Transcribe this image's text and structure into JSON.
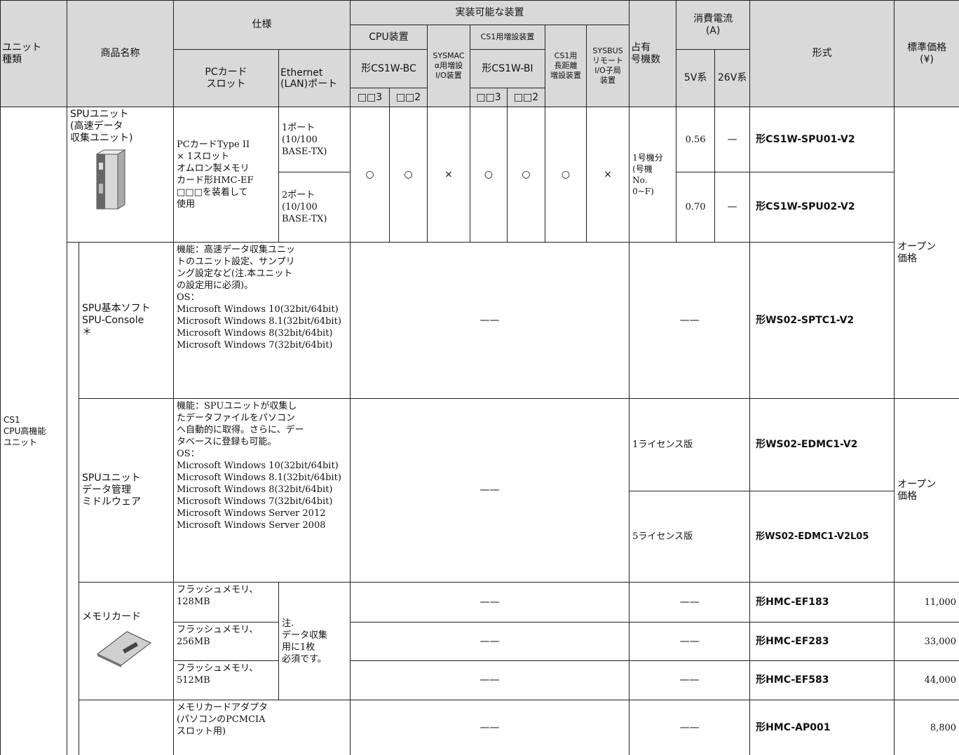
{
  "header": {
    "unit_type": [
      "ユニット",
      "種類"
    ],
    "product_name": "商品名称",
    "spec": "仕様",
    "pc_card_slot": [
      "PCカード",
      "スロット"
    ],
    "ethernet": [
      "Ethernet",
      "(LAN)ポート"
    ],
    "mountable": "実装可能な装置",
    "cpu_unit": "CPU装置",
    "cpu_model": "形CS1W-BC",
    "cpu_3": "□□3",
    "cpu_2": "□□2",
    "sysmac": [
      "SYSMAC",
      "α用増設",
      "I/O装置"
    ],
    "expansion": "CS1用増設装置",
    "exp_model": "形CS1W-BI",
    "exp_3": "□□3",
    "exp_2": "□□2",
    "long_distance": [
      "CS1用",
      "長距離",
      "増設装置"
    ],
    "sysbus": [
      "SYSBUS",
      "リモート",
      "I/O子局",
      "装置"
    ],
    "unit_count": [
      "占有",
      "号機数"
    ],
    "current": [
      "消費電流",
      "(A)"
    ],
    "v5": "5V系",
    "v26": "26V系",
    "model": "形式",
    "price": [
      "標準価格",
      "(¥)"
    ]
  },
  "unit_type": [
    "CS1",
    "CPU高機能",
    "ユニット"
  ],
  "spu": {
    "name": [
      "SPUユニット",
      "(高速データ",
      "収集ユニット)"
    ],
    "spec": [
      "PCカードType II",
      "× 1スロット",
      "オムロン製メモリ",
      "カード形HMC-EF",
      "□□□を装着して",
      "使用"
    ],
    "ports": [
      [
        "1ポート",
        "(10/100",
        "BASE-TX)"
      ],
      [
        "2ポート",
        "(10/100",
        "BASE-TX)"
      ]
    ],
    "compat": [
      "○",
      "○",
      "×",
      "○",
      "○",
      "○",
      "×"
    ],
    "unit_count": [
      "1号機分",
      "(号機",
      "No.",
      "0~F)"
    ],
    "current_5v": [
      "0.56",
      "0.70"
    ],
    "current_26v": [
      "—",
      "—"
    ],
    "models": [
      "形CS1W-SPU01-V2",
      "形CS1W-SPU02-V2"
    ],
    "price": [
      "オープン",
      "価格"
    ]
  },
  "console": {
    "name": [
      "SPU基本ソフト",
      "SPU-Console",
      "＊"
    ],
    "spec": [
      "機能：高速データ収集ユニッ",
      "トのユニット設定、サンプリ",
      "ング設定など(注.本ユニット",
      "の設定用に必須)。",
      "OS：",
      "Microsoft Windows 10(32bit/64bit)",
      "Microsoft Windows 8.1(32bit/64bit)",
      "Microsoft Windows 8(32bit/64bit)",
      "Microsoft Windows 7(32bit/64bit)"
    ],
    "compat": "——",
    "unit_count": "——",
    "model": "形WS02-SPTC1-V2"
  },
  "middleware": {
    "name": [
      "SPUユニット",
      "データ管理",
      "ミドルウェア"
    ],
    "spec": [
      "機能：SPUユニットが収集し",
      "たデータファイルをパソコン",
      "へ自動的に取得。さらに、デー",
      "タベースに登録も可能。",
      "OS：",
      "Microsoft Windows 10(32bit/64bit)",
      "Microsoft Windows 8.1(32bit/64bit)",
      "Microsoft Windows 8(32bit/64bit)",
      "Microsoft Windows 7(32bit/64bit)",
      "Microsoft Windows Server 2012",
      "Microsoft Windows Server 2008"
    ],
    "compat": "——",
    "licenses": [
      "1ライセンス版",
      "5ライセンス版"
    ],
    "models": [
      "形WS02-EDMC1-V2",
      "形WS02-EDMC1-V2L05"
    ],
    "price": [
      "オープン",
      "価格"
    ]
  },
  "memory": {
    "name": "メモリカード",
    "note": [
      "注.",
      "データ収集",
      "用に1枚",
      "必須です。"
    ],
    "items": [
      {
        "spec": [
          "フラッシュメモリ、",
          "128MB"
        ],
        "compat": "——",
        "unit_count": "——",
        "model": "形HMC-EF183",
        "price": "11,000"
      },
      {
        "spec": [
          "フラッシュメモリ、",
          "256MB"
        ],
        "compat": "——",
        "unit_count": "——",
        "model": "形HMC-EF283",
        "price": "33,000"
      },
      {
        "spec": [
          "フラッシュメモリ、",
          "512MB"
        ],
        "compat": "——",
        "unit_count": "——",
        "model": "形HMC-EF583",
        "price": "44,000"
      }
    ]
  },
  "adapter": {
    "spec": [
      "メモリカードアダプタ",
      "(パソコンのPCMCIA",
      "スロット用)"
    ],
    "compat": "——",
    "unit_count": "——",
    "model": "形HMC-AP001",
    "price": "8,800"
  }
}
